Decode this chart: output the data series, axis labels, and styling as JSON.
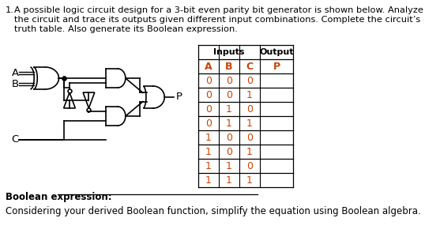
{
  "title_number": "1.",
  "title_text": "A possible logic circuit design for a 3-bit even parity bit generator is shown below. Analyze\nthe circuit and trace its outputs given different input combinations. Complete the circuit’s\ntruth table. Also generate its Boolean expression.",
  "inputs_header": "Inputs",
  "output_header": "Output",
  "col_headers": [
    "A",
    "B",
    "C",
    "P"
  ],
  "rows": [
    [
      "0",
      "0",
      "0",
      ""
    ],
    [
      "0",
      "0",
      "1",
      ""
    ],
    [
      "0",
      "1",
      "0",
      ""
    ],
    [
      "0",
      "1",
      "1",
      ""
    ],
    [
      "1",
      "0",
      "0",
      ""
    ],
    [
      "1",
      "0",
      "1",
      ""
    ],
    [
      "1",
      "1",
      "0",
      ""
    ],
    [
      "1",
      "1",
      "1",
      ""
    ]
  ],
  "input_col_color": "#cc4400",
  "output_col_color": "#cc4400",
  "boolean_label": "Boolean expression:",
  "simplify_text": "Considering your derived Boolean function, simplify the equation using Boolean algebra.",
  "bg_color": "#ffffff",
  "text_color": "#000000",
  "gate_color": "#000000",
  "input_label_A": "A",
  "input_label_B": "B",
  "input_label_C": "C",
  "output_label_P": "P"
}
